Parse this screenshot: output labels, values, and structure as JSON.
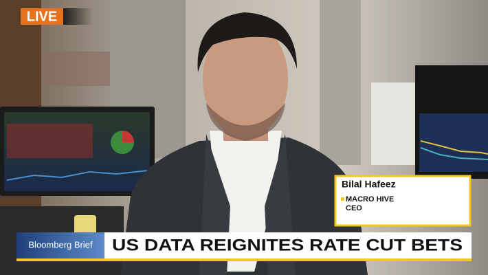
{
  "live_badge": "LIVE",
  "lower_third": {
    "name": "Bilal Hafeez",
    "organization": "MACRO HIVE",
    "role": "CEO"
  },
  "ticker": {
    "label": "Bloomberg Brief",
    "headline": "US DATA REIGNITES RATE CUT BETS"
  }
}
